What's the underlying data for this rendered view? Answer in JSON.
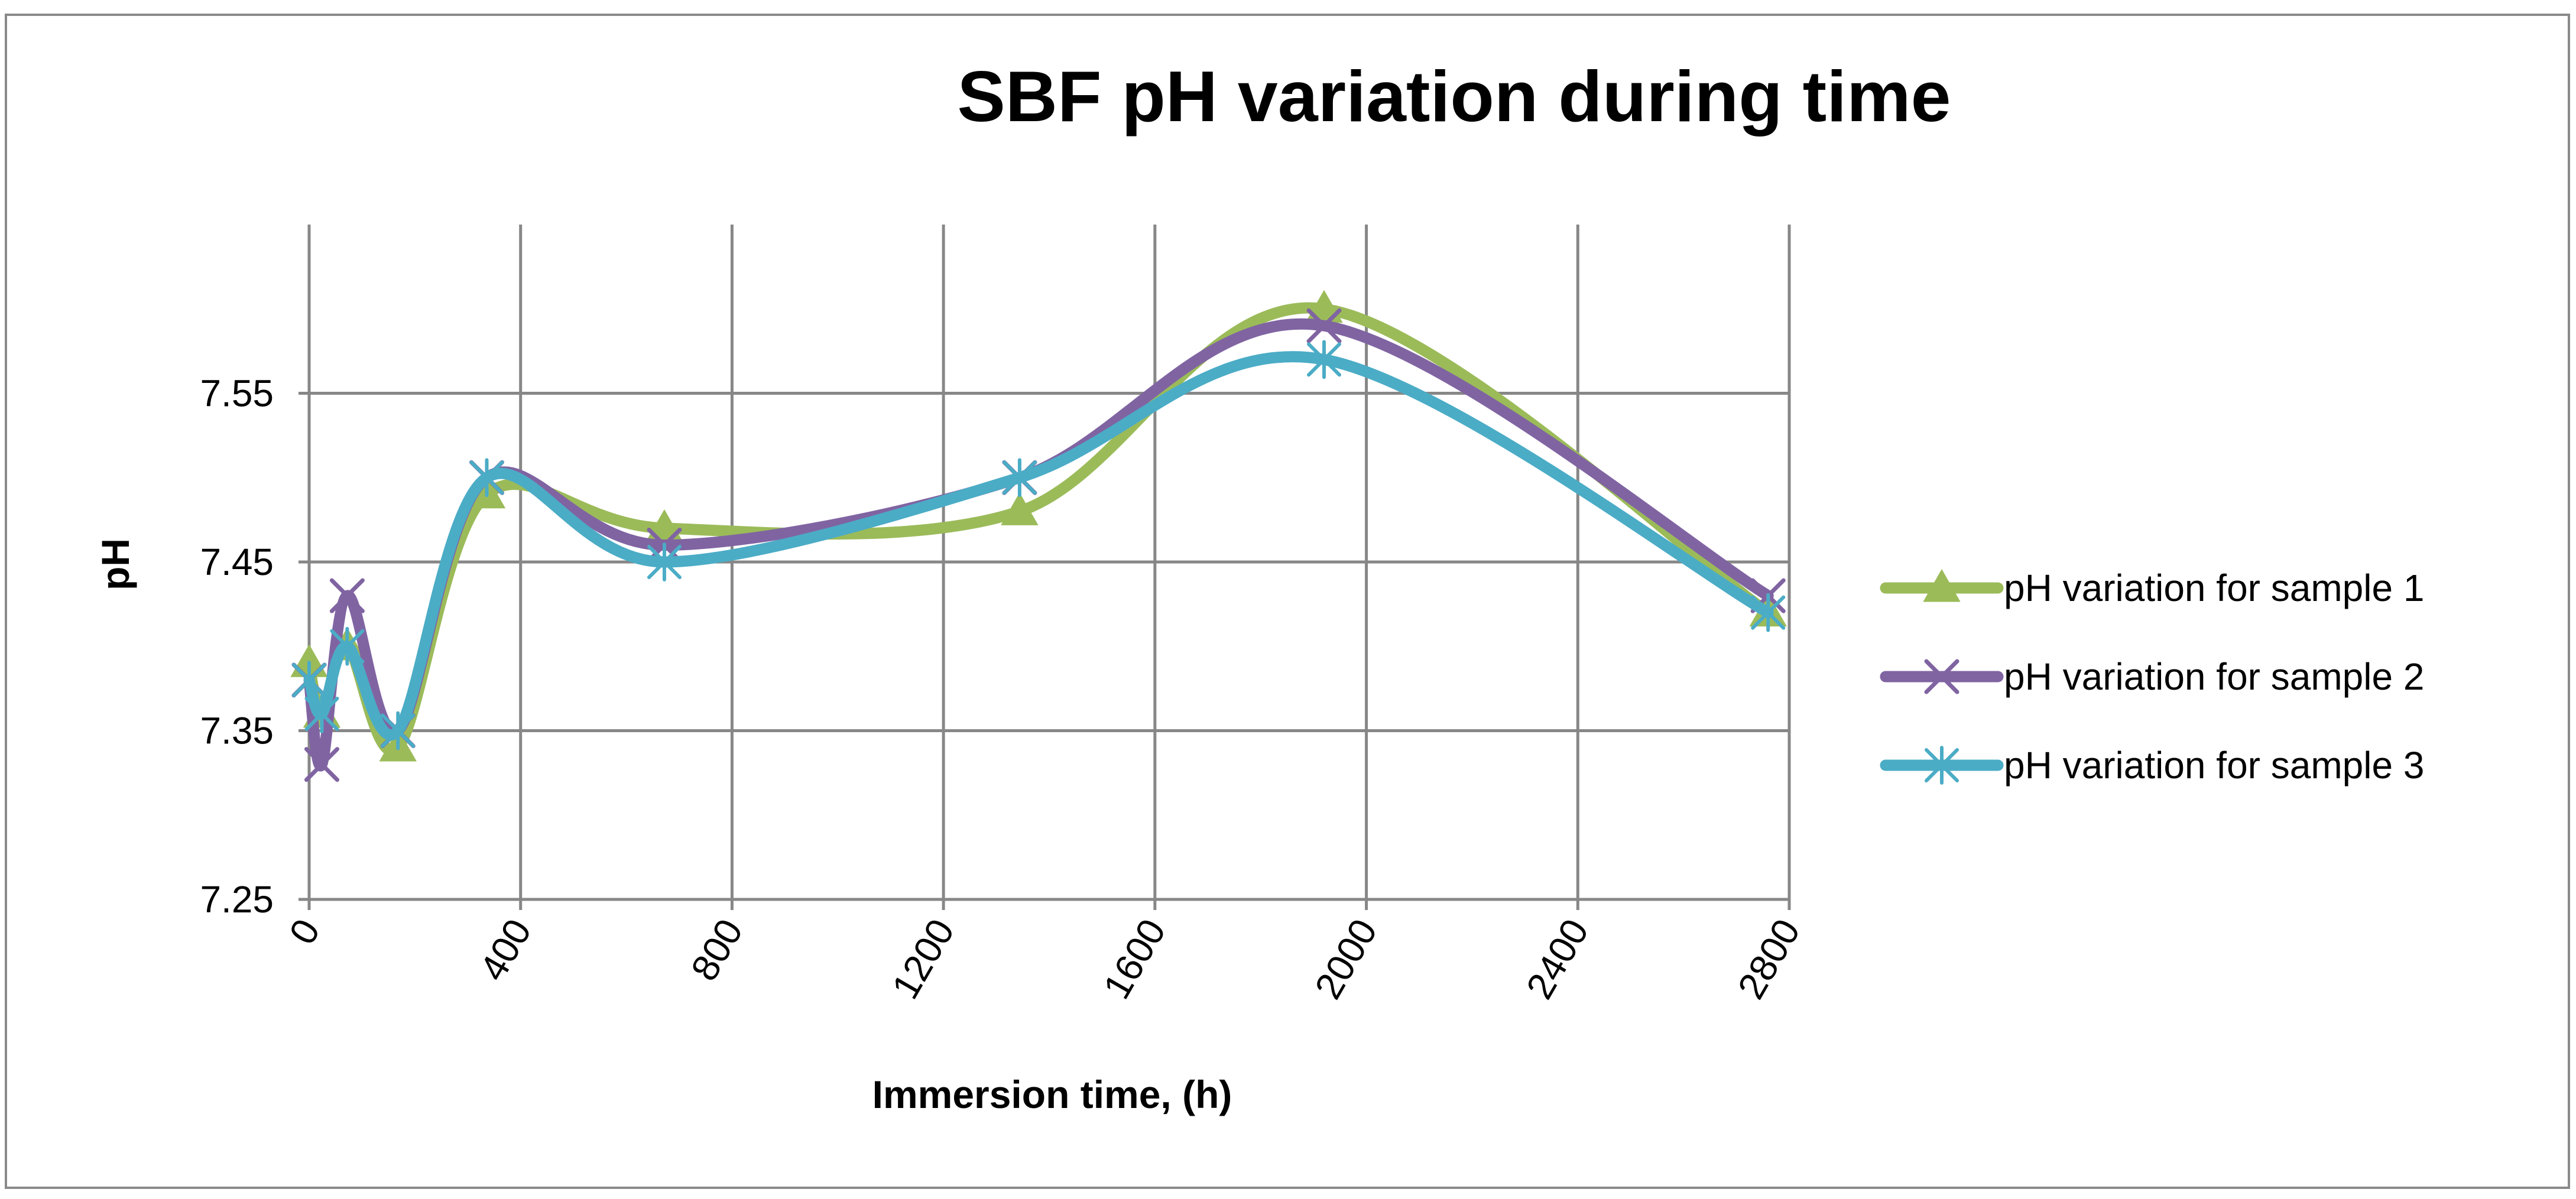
{
  "chart_data": {
    "type": "line",
    "title": "SBF pH variation during time",
    "xlabel": "Immersion time, (h)",
    "ylabel": "pH",
    "xlim": [
      0,
      2800
    ],
    "ylim": [
      7.25,
      7.65
    ],
    "xticks": [
      0,
      400,
      800,
      1200,
      1600,
      2000,
      2400,
      2800
    ],
    "yticks": [
      7.25,
      7.35,
      7.45,
      7.55
    ],
    "xtick_labels": [
      "0",
      "400",
      "800",
      "1200",
      "1600",
      "2000",
      "2400",
      "2800"
    ],
    "ytick_labels": [
      "7.25",
      "7.35",
      "7.45",
      "7.55"
    ],
    "grid": true,
    "legend_position": "right",
    "series": [
      {
        "name": "pH variation for sample 1",
        "color": "#9bbb59",
        "marker": "triangle",
        "x": [
          0,
          24,
          72,
          168,
          336,
          672,
          1344,
          1920,
          2760
        ],
        "y": [
          7.39,
          7.36,
          7.4,
          7.34,
          7.49,
          7.47,
          7.48,
          7.6,
          7.42
        ]
      },
      {
        "name": "pH variation for sample 2",
        "color": "#8064a2",
        "marker": "x",
        "x": [
          0,
          24,
          72,
          168,
          336,
          672,
          1344,
          1920,
          2760
        ],
        "y": [
          7.38,
          7.33,
          7.43,
          7.35,
          7.5,
          7.46,
          7.5,
          7.59,
          7.43
        ]
      },
      {
        "name": "pH variation for sample 3",
        "color": "#4bacc6",
        "marker": "star",
        "x": [
          0,
          24,
          72,
          168,
          336,
          672,
          1344,
          1920,
          2760
        ],
        "y": [
          7.38,
          7.36,
          7.4,
          7.35,
          7.5,
          7.45,
          7.5,
          7.57,
          7.42
        ]
      }
    ]
  }
}
